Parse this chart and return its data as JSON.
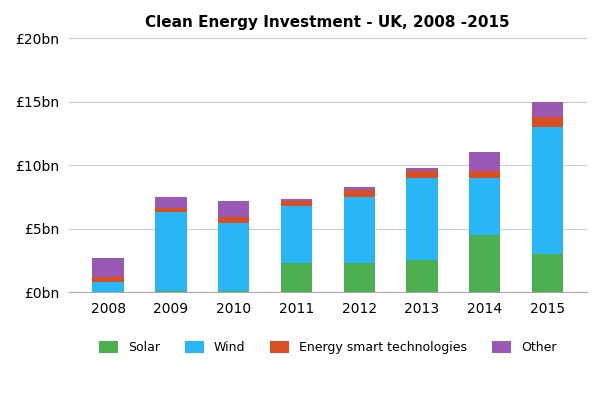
{
  "title": "Clean Energy Investment - UK, 2008 -2015",
  "years": [
    2008,
    2009,
    2010,
    2011,
    2012,
    2013,
    2014,
    2015
  ],
  "solar": [
    0.0,
    0.1,
    0.1,
    2.3,
    2.3,
    2.5,
    4.5,
    3.0
  ],
  "wind": [
    0.8,
    6.2,
    5.3,
    4.5,
    5.2,
    6.5,
    4.5,
    10.0
  ],
  "energy_smart": [
    0.4,
    0.3,
    0.5,
    0.4,
    0.5,
    0.5,
    0.5,
    0.8
  ],
  "other": [
    1.5,
    0.9,
    1.3,
    0.1,
    0.3,
    0.3,
    1.5,
    1.2
  ],
  "colors": {
    "solar": "#4caf50",
    "wind": "#29b6f6",
    "energy_smart": "#d94f22",
    "other": "#9b59b6"
  },
  "ylim": [
    0,
    20
  ],
  "yticks": [
    0,
    5,
    10,
    15,
    20
  ],
  "ytick_labels": [
    "£0bn",
    "£5bn",
    "£10bn",
    "£15bn",
    "£20bn"
  ],
  "legend_labels": [
    "Solar",
    "Wind",
    "Energy smart technologies",
    "Other"
  ],
  "background_color": "#ffffff",
  "grid_color": "#cccccc"
}
